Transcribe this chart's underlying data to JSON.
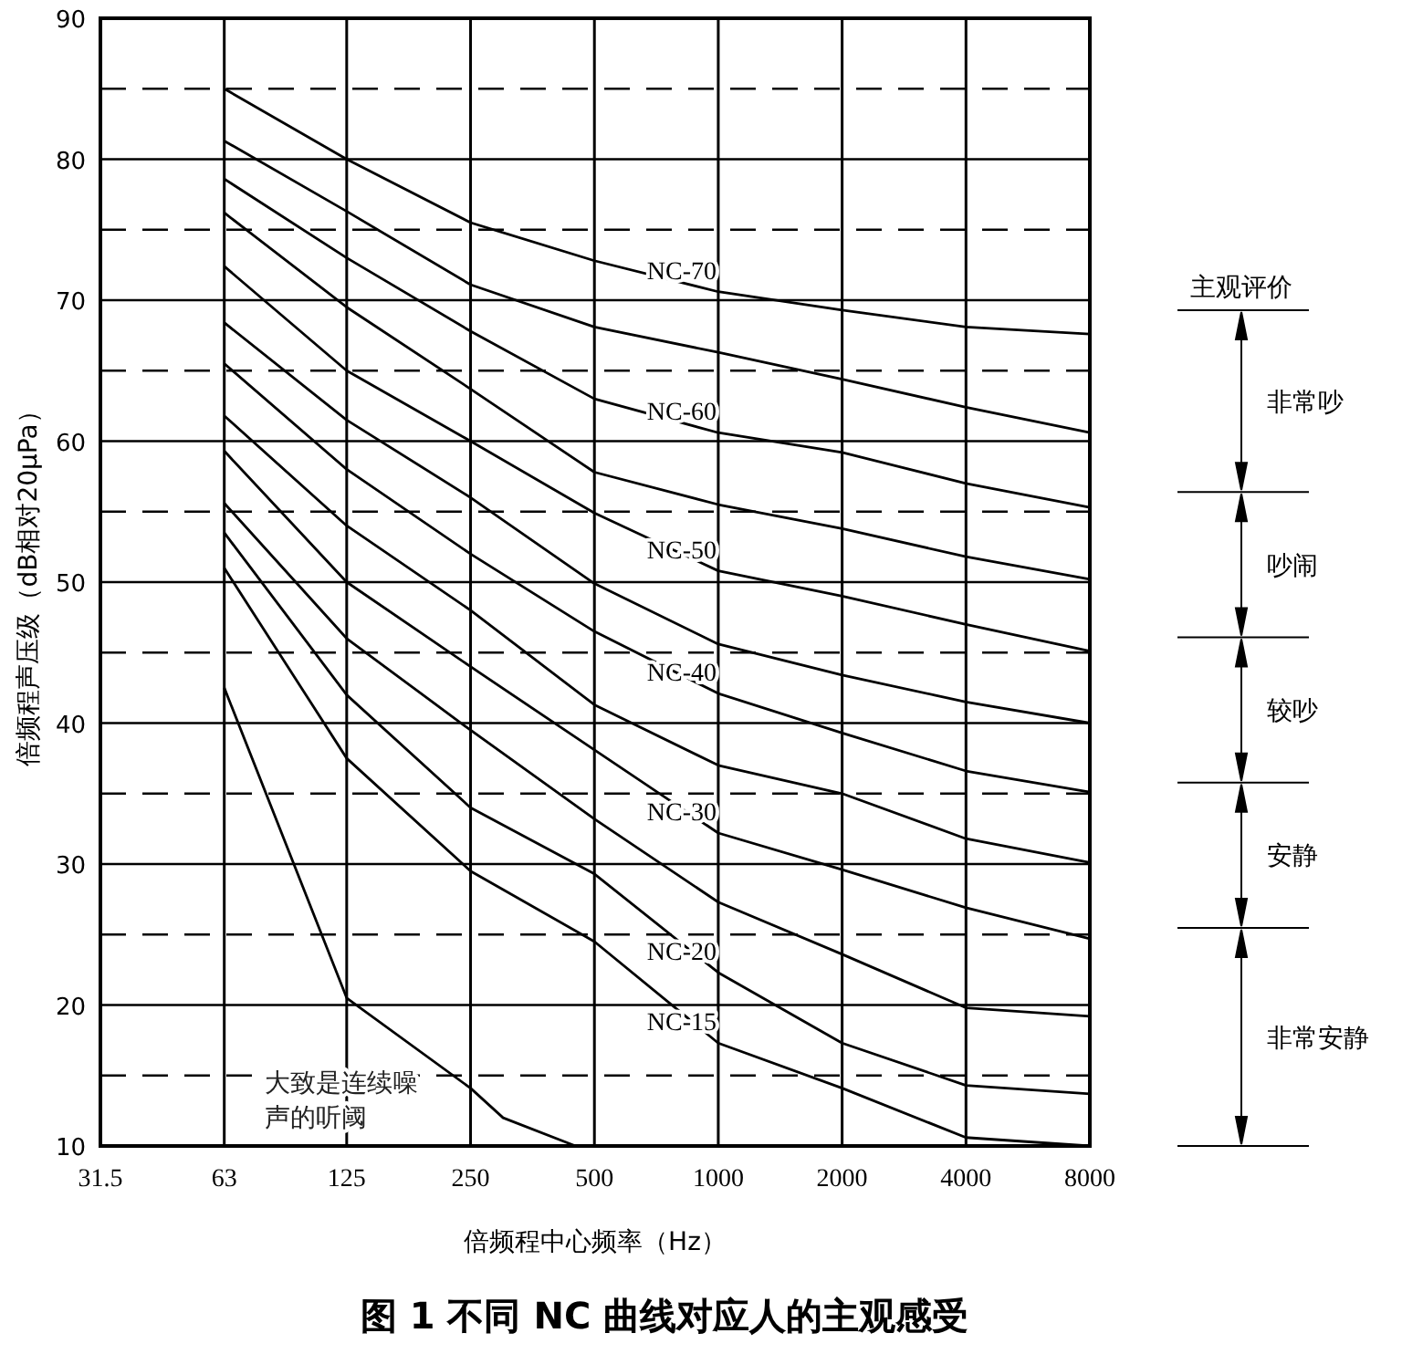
{
  "chart_data": {
    "type": "line",
    "title": "图 1 不同 NC 曲线对应人的主观感受",
    "xlabel": "倍频程中心频率（Hz）",
    "ylabel": "倍频程声压级（dB相对20μPa）",
    "x": [
      63,
      125,
      250,
      500,
      1000,
      2000,
      4000,
      8000
    ],
    "series": [
      {
        "name": "NC-15",
        "color": "#000000",
        "values": [
          51,
          37.5,
          29.5,
          24.5,
          17.3,
          14.1,
          10.6,
          10
        ]
      },
      {
        "name": "NC-20",
        "color": "#000000",
        "values": [
          53.5,
          42,
          34,
          29.3,
          22.3,
          17.3,
          14.3,
          13.7
        ]
      },
      {
        "color": "#000000",
        "values": [
          55.6,
          46,
          39.5,
          33.2,
          27.3,
          23.6,
          19.8,
          19.2
        ]
      },
      {
        "name": "NC-30",
        "color": "#000000",
        "values": [
          59.3,
          50,
          44,
          38.1,
          32.2,
          29.6,
          26.9,
          24.7
        ]
      },
      {
        "color": "#000000",
        "values": [
          61.8,
          54,
          48,
          41.3,
          37,
          35,
          31.8,
          30.1
        ]
      },
      {
        "name": "NC-40",
        "color": "#000000",
        "values": [
          65.5,
          58,
          52,
          46.5,
          42.1,
          39.3,
          36.6,
          35.1
        ]
      },
      {
        "color": "#000000",
        "values": [
          68.4,
          61.5,
          56,
          49.9,
          45.6,
          43.4,
          41.5,
          40
        ]
      },
      {
        "name": "NC-50",
        "color": "#000000",
        "values": [
          72.4,
          65,
          60,
          54.9,
          50.8,
          49,
          47,
          45.1
        ]
      },
      {
        "color": "#000000",
        "values": [
          76.2,
          69.5,
          63.7,
          57.8,
          55.5,
          53.8,
          51.8,
          50.2
        ]
      },
      {
        "name": "NC-60",
        "color": "#000000",
        "values": [
          78.6,
          73,
          67.8,
          63,
          60.6,
          59.2,
          57,
          55.3
        ]
      },
      {
        "color": "#000000",
        "values": [
          81.3,
          76.3,
          71.1,
          68.1,
          66.3,
          64.4,
          62.4,
          60.6
        ]
      },
      {
        "name": "NC-70",
        "color": "#000000",
        "values": [
          85,
          80,
          75.5,
          72.8,
          70.6,
          69.3,
          68.1,
          67.6
        ]
      },
      {
        "name": "大致是连续噪声的听阈",
        "color": "#000000",
        "x": [
          63,
          125,
          250,
          300,
          450
        ],
        "values": [
          42.5,
          20.5,
          14.1,
          12,
          10
        ]
      }
    ],
    "xlim": [
      31.5,
      8000
    ],
    "ylim": [
      10,
      90
    ],
    "log": "x",
    "xticks": [
      31.5,
      63,
      125,
      250,
      500,
      1000,
      2000,
      4000,
      8000
    ],
    "yticks": [
      10,
      {
        "value": 15,
        "label": null
      },
      20,
      {
        "value": 25,
        "label": null
      },
      30,
      {
        "value": 35,
        "label": null
      },
      40,
      {
        "value": 45,
        "label": null
      },
      50,
      {
        "value": 55,
        "label": null
      },
      60,
      {
        "value": 65,
        "label": null
      },
      70,
      {
        "value": 75,
        "label": null
      },
      80,
      {
        "value": 85,
        "label": null
      },
      90
    ],
    "grid": true,
    "marker": "none",
    "line_style": "solid",
    "annotations": [
      "主观评价",
      "非常吵",
      "吵闹",
      "较吵",
      "安静",
      "非常安静"
    ]
  }
}
